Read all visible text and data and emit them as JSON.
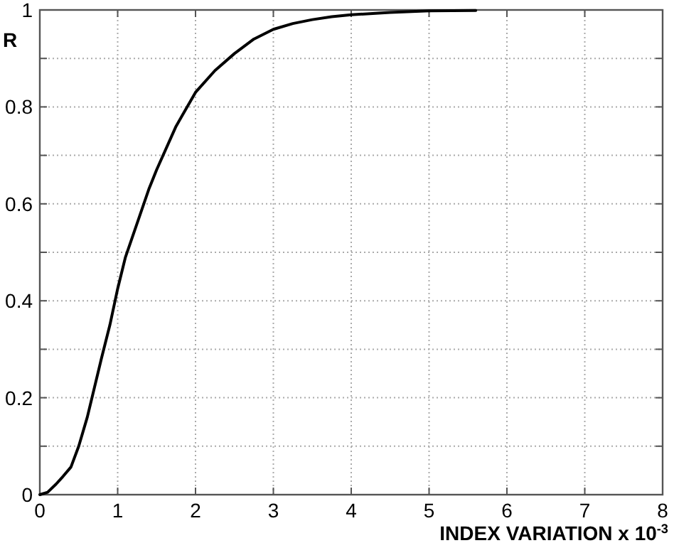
{
  "chart_data": {
    "type": "line",
    "xlabel": "INDEX VARIATION x 10$^{-3}$",
    "ylabel": "R",
    "x": [
      0,
      0.1,
      0.21,
      0.3,
      0.4,
      0.5,
      0.61,
      0.7,
      0.79,
      0.9,
      1,
      1.1,
      1.25,
      1.4,
      1.5,
      1.75,
      2,
      2.25,
      2.5,
      2.75,
      3,
      3.25,
      3.5,
      3.75,
      4,
      4.5,
      5,
      5.6
    ],
    "series": [
      {
        "color": "#000000",
        "values": [
          0,
          0.005,
          0.022,
          0.038,
          0.057,
          0.1,
          0.16,
          0.22,
          0.28,
          0.35,
          0.425,
          0.49,
          0.56,
          0.63,
          0.67,
          0.76,
          0.83,
          0.875,
          0.91,
          0.94,
          0.96,
          0.972,
          0.98,
          0.986,
          0.99,
          0.995,
          0.998,
          0.999
        ]
      }
    ],
    "xlim": [
      0,
      8
    ],
    "xticks": [
      0,
      1,
      2,
      3,
      4,
      5,
      6,
      7,
      8
    ],
    "ylim": [
      0,
      1
    ],
    "yticks": [
      0,
      {
        "value": 0.1,
        "label": null
      },
      0.2,
      {
        "value": 0.3,
        "label": null
      },
      0.4,
      {
        "value": 0.5,
        "label": null
      },
      0.6,
      {
        "value": 0.7,
        "label": null
      },
      0.8,
      {
        "value": 0.9,
        "label": null
      },
      1
    ],
    "grid": true,
    "marker": "none",
    "line_style": "solid"
  }
}
